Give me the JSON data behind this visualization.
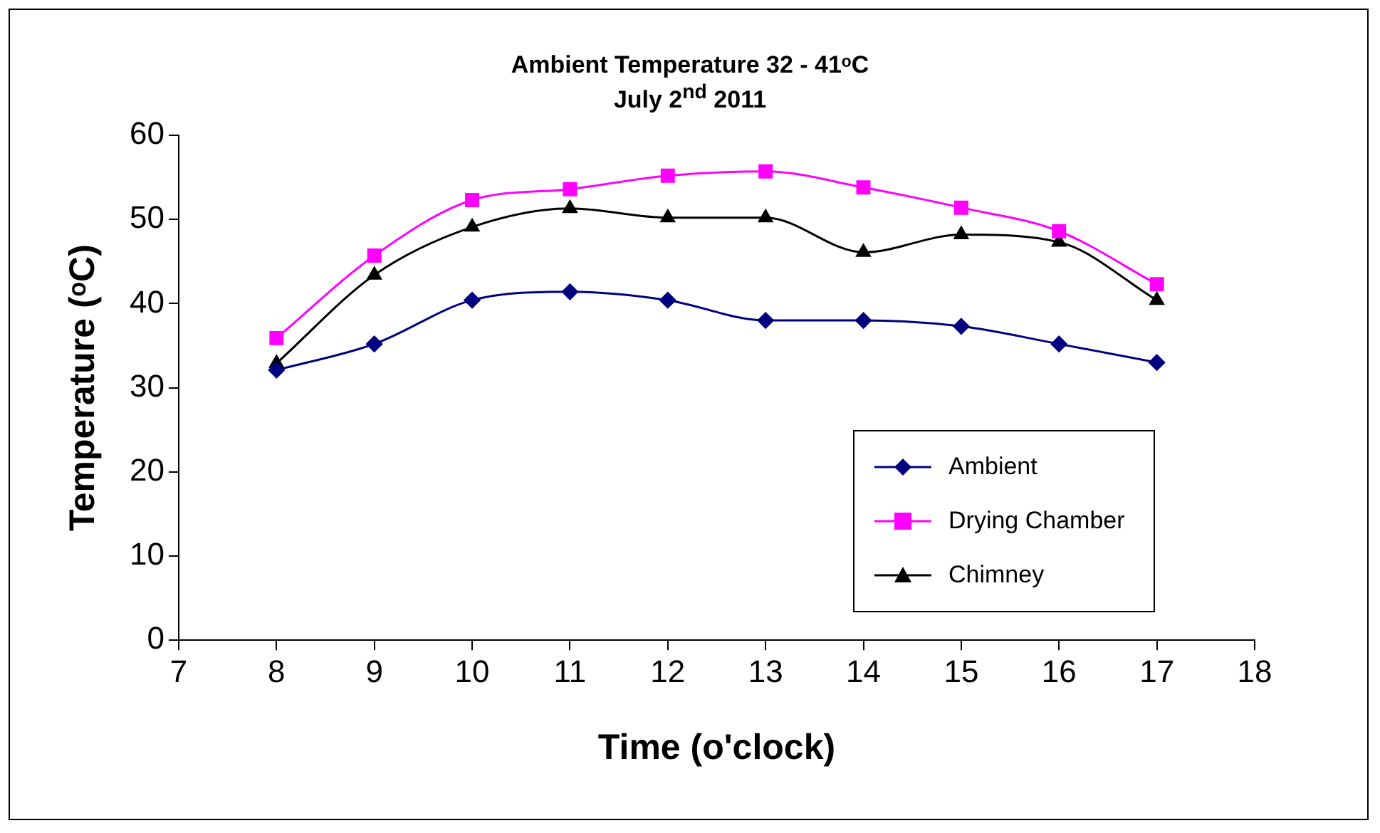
{
  "chart_data": {
    "type": "line",
    "title": "Ambient Temperature 32 - 41ᵒC",
    "subtitle": "July 2$^{nd}$ 2011",
    "xlabel": "Time (o'clock)",
    "ylabel": "Temperature (ᵒC)",
    "x": [
      8,
      9,
      10,
      11,
      12,
      13,
      14,
      15,
      16,
      17
    ],
    "series": [
      {
        "name": "Ambient",
        "color": "#000080",
        "marker": "diamond",
        "values": [
          32.1,
          35.2,
          40.4,
          41.4,
          40.4,
          38.0,
          38.0,
          37.3,
          35.2,
          33.0
        ]
      },
      {
        "name": "Drying Chamber",
        "color": "#ff00ff",
        "marker": "square",
        "values": [
          35.9,
          45.7,
          52.3,
          53.6,
          55.2,
          55.7,
          53.8,
          51.4,
          48.6,
          42.3
        ]
      },
      {
        "name": "Chimney",
        "color": "#000000",
        "marker": "triangle",
        "values": [
          32.9,
          43.4,
          49.1,
          51.3,
          50.2,
          50.2,
          46.1,
          48.2,
          47.3,
          40.4
        ]
      }
    ],
    "xlim": [
      7,
      18
    ],
    "xticks": [
      7,
      8,
      9,
      10,
      11,
      12,
      13,
      14,
      15,
      16,
      17,
      18
    ],
    "ylim": [
      0,
      60
    ],
    "yticks": [
      0,
      10,
      20,
      30,
      40,
      50,
      60
    ],
    "grid": false,
    "legend": "bottom right",
    "line_style": "solid"
  }
}
